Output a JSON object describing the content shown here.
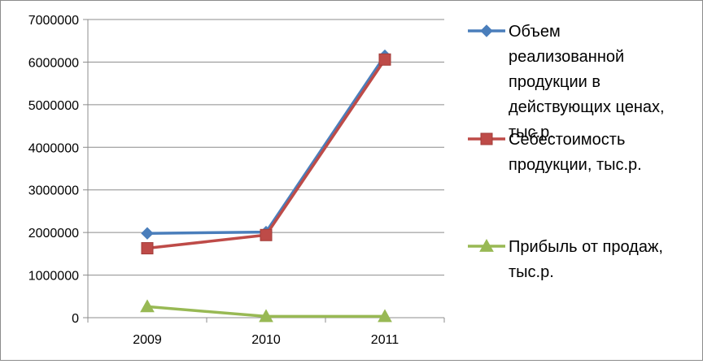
{
  "chart_data": {
    "type": "line",
    "categories": [
      "2009",
      "2010",
      "2011"
    ],
    "ylim": [
      0,
      7000000
    ],
    "yticks": [
      "0",
      "1000000",
      "2000000",
      "3000000",
      "4000000",
      "5000000",
      "6000000",
      "7000000"
    ],
    "grid": true,
    "legend_position": "right",
    "series": [
      {
        "name": "Объем реализованной продукции в действующих ценах, тыс.р.",
        "legend_lines": [
          "Объем",
          "реализованной",
          "продукции в",
          "действующих ценах,",
          "тыс.р."
        ],
        "values": [
          1980000,
          2010000,
          6150000
        ],
        "color": "#4a7ebb",
        "marker": "diamond"
      },
      {
        "name": "Себестоимость продукции, тыс.р.",
        "legend_lines": [
          "Себестоимость",
          "продукции, тыс.р."
        ],
        "values": [
          1630000,
          1940000,
          6060000
        ],
        "color": "#be4b48",
        "marker": "square"
      },
      {
        "name": "Прибыль от продаж, тыс.р.",
        "legend_lines": [
          "Прибыль от продаж,",
          "тыс.р."
        ],
        "values": [
          260000,
          30000,
          30000
        ],
        "color": "#98b954",
        "marker": "triangle"
      }
    ]
  }
}
